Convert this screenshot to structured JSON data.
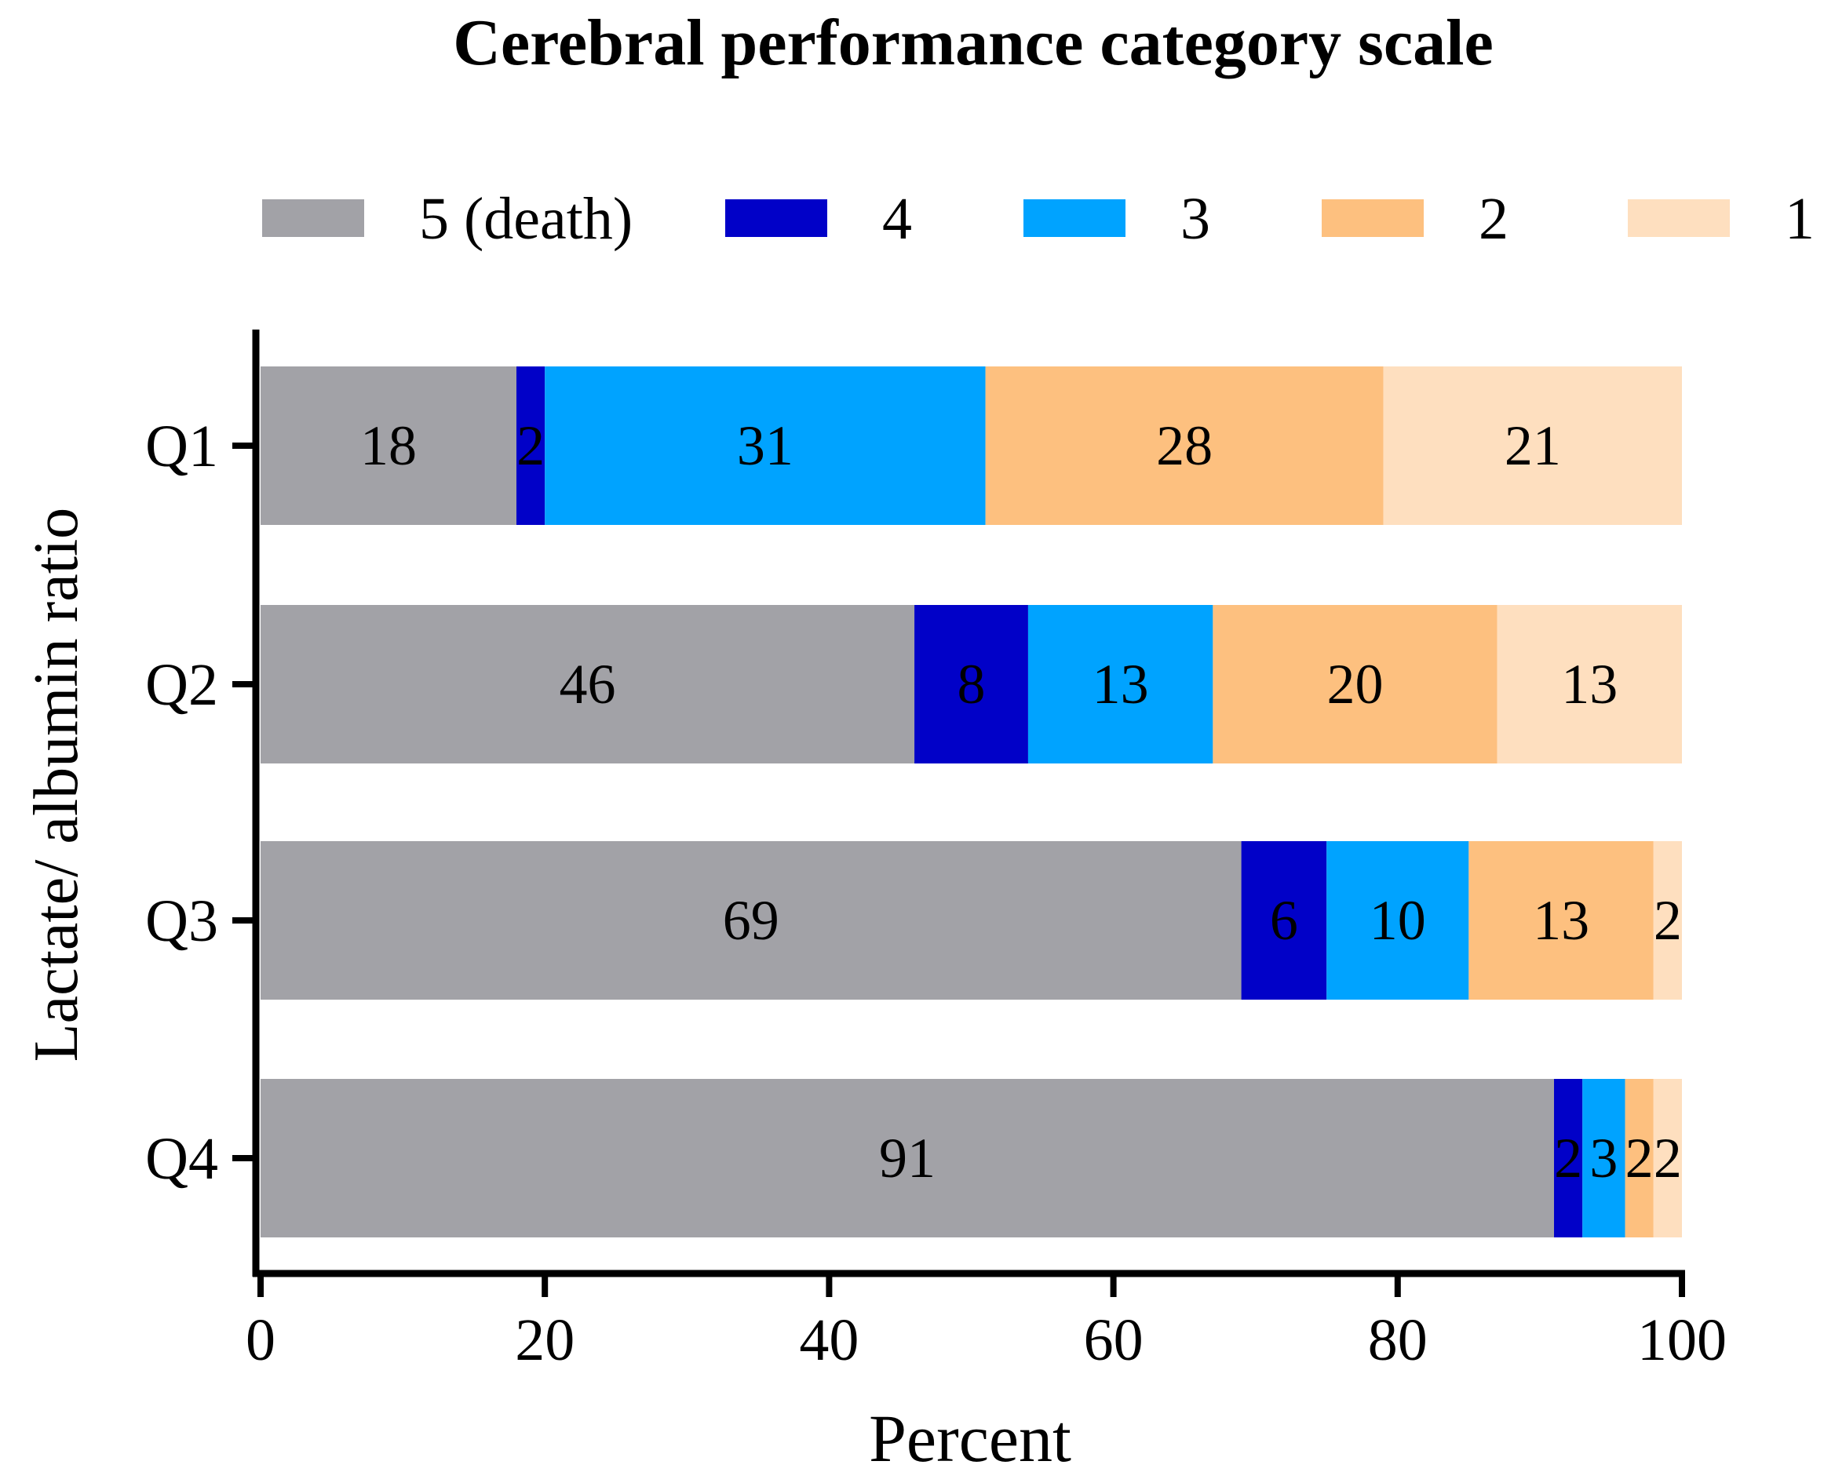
{
  "chart_data": {
    "type": "bar",
    "orientation": "horizontal",
    "stacked": true,
    "title": "Cerebral performance category scale",
    "xlabel": "Percent",
    "ylabel": "Lactate/ albumin ratio",
    "xlim": [
      0,
      100
    ],
    "xticks": [
      "0",
      "20",
      "40",
      "60",
      "80",
      "100"
    ],
    "categories": [
      "Q1",
      "Q2",
      "Q3",
      "Q4"
    ],
    "grid": false,
    "legend_position": "top",
    "series": [
      {
        "name": "5 (death)",
        "color": "#a2a2a7",
        "values": [
          18,
          46,
          69,
          91
        ],
        "labels": [
          "18",
          "46",
          "69",
          "91"
        ]
      },
      {
        "name": "4",
        "color": "#0101c8",
        "values": [
          2,
          8,
          6,
          2
        ],
        "labels": [
          "2",
          "8",
          "6",
          "2"
        ]
      },
      {
        "name": "3",
        "color": "#00a3ff",
        "values": [
          31,
          13,
          10,
          3
        ],
        "labels": [
          "31",
          "13",
          "10",
          "3"
        ]
      },
      {
        "name": "2",
        "color": "#fdc07f",
        "values": [
          28,
          20,
          13,
          2
        ],
        "labels": [
          "28",
          "20",
          "13",
          "2"
        ]
      },
      {
        "name": "1",
        "color": "#fedfbf",
        "values": [
          21,
          13,
          2,
          2
        ],
        "labels": [
          "21",
          "13",
          "2",
          "2"
        ]
      }
    ]
  }
}
